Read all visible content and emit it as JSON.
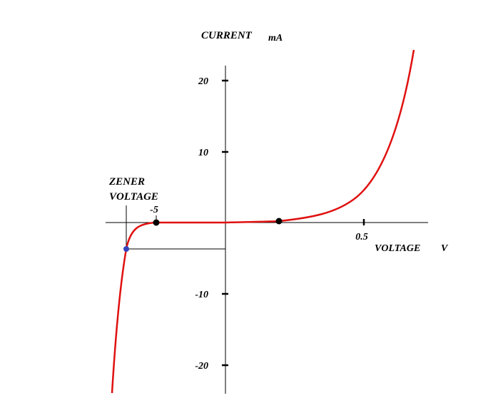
{
  "diagram": {
    "y_axis_label": "CURRENT",
    "y_axis_unit": "mA",
    "x_axis_label": "VOLTAGE",
    "x_axis_unit": "V",
    "annotation": [
      "ZENER",
      "VOLTAGE"
    ],
    "y_tick_labels": [
      "20",
      "10",
      "-10",
      "-20"
    ],
    "x_tick_labels": [
      "-5",
      "0.5"
    ]
  }
}
